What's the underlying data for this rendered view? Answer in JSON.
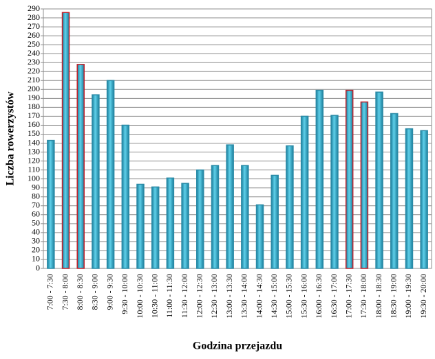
{
  "chart_data": {
    "type": "bar",
    "xlabel": "Godzina przejazdu",
    "ylabel": "Liczba rowerzystów",
    "categories": [
      "7:00 - 7:30",
      "7:30 - 8:00",
      "8:00 - 8:30",
      "8:30 - 9:00",
      "9:00 - 9:30",
      "9:30 - 10:00",
      "10:00 - 10:30",
      "10:30 - 11:00",
      "11:00 - 11:30",
      "11:30 - 12:00",
      "12:00 - 12:30",
      "12:30 - 13:00",
      "13:00 - 13:30",
      "13:30 - 14:00",
      "14:00 - 14:30",
      "14:30 - 15:00",
      "15:00 - 15:30",
      "15:30 - 16:00",
      "16:00 - 16:30",
      "16:30 - 17:00",
      "17:00 - 17:30",
      "17:30 - 18:00",
      "18:00 - 18:30",
      "18:30 - 19:00",
      "19:00 - 19:30",
      "19:30 - 20:00"
    ],
    "values": [
      143,
      286,
      228,
      194,
      210,
      160,
      94,
      91,
      101,
      95,
      110,
      115,
      138,
      115,
      71,
      104,
      137,
      170,
      199,
      171,
      199,
      186,
      197,
      173,
      156,
      154
    ],
    "color": "#2aa3c4",
    "edge_colors": [
      "#2a8aa6",
      "#c0202a",
      "#c0202a",
      "#2a8aa6",
      "#2a8aa6",
      "#2a8aa6",
      "#2a8aa6",
      "#2a8aa6",
      "#2a8aa6",
      "#2a8aa6",
      "#2a8aa6",
      "#2a8aa6",
      "#2a8aa6",
      "#2a8aa6",
      "#2a8aa6",
      "#2a8aa6",
      "#2a8aa6",
      "#2a8aa6",
      "#2a8aa6",
      "#2a8aa6",
      "#c0202a",
      "#c0202a",
      "#2a8aa6",
      "#2a8aa6",
      "#2a8aa6",
      "#2a8aa6"
    ],
    "ylim": [
      0,
      290
    ],
    "yticks": [
      0,
      10,
      20,
      30,
      40,
      50,
      60,
      70,
      80,
      90,
      100,
      110,
      120,
      130,
      140,
      150,
      160,
      170,
      180,
      190,
      200,
      210,
      220,
      230,
      240,
      250,
      260,
      270,
      280,
      290
    ],
    "grid": true
  }
}
